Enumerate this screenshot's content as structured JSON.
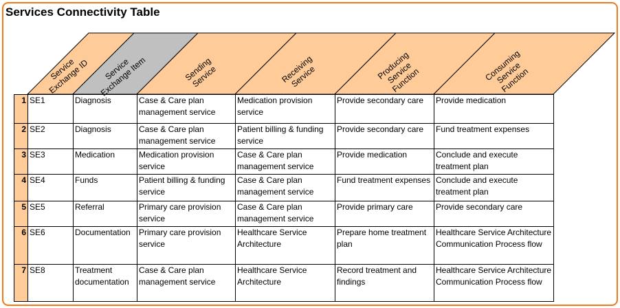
{
  "title": "Services Connectivity Table",
  "colors": {
    "header_fill": "#ffcc99",
    "header_fill_highlight": "#c0c0c0",
    "frame": "#f07a1a"
  },
  "columns": [
    {
      "lines": [
        "Service",
        "Exchange ID"
      ]
    },
    {
      "lines": [
        "Service",
        "Exchange Item"
      ]
    },
    {
      "lines": [
        "Sending",
        "Service"
      ]
    },
    {
      "lines": [
        "Receiving",
        "Service"
      ]
    },
    {
      "lines": [
        "Producing",
        "Service",
        "Function"
      ]
    },
    {
      "lines": [
        "Consuming",
        "Service",
        "Function"
      ]
    }
  ],
  "rows": [
    {
      "num": "1",
      "cells": [
        "SE1",
        "Diagnosis",
        "Case & Care plan management service",
        "Medication provision service",
        "Provide secondary care",
        "Provide medication"
      ]
    },
    {
      "num": "2",
      "cells": [
        "SE2",
        "Diagnosis",
        "Case & Care plan management service",
        "Patient billing & funding service",
        "Provide secondary care",
        "Fund treatment expenses"
      ]
    },
    {
      "num": "3",
      "cells": [
        "SE3",
        "Medication",
        "Medication provision service",
        "Case & Care plan management service",
        "Provide medication",
        "Conclude and execute treatment plan"
      ]
    },
    {
      "num": "4",
      "cells": [
        "SE4",
        "Funds",
        "Patient billing & funding service",
        "Case & Care plan management service",
        "Fund treatment expenses",
        "Conclude and execute treatment plan"
      ]
    },
    {
      "num": "5",
      "cells": [
        "SE5",
        "Referral",
        "Primary care provision service",
        "Case & Care plan management service",
        "Provide primary care",
        "Provide secondary care"
      ]
    },
    {
      "num": "6",
      "cells": [
        "SE6",
        "Documentation",
        "Primary care provision service",
        "Healthcare Service Architecture",
        "Prepare home treatment plan",
        "Healthcare Service Architecture Communication Process flow"
      ]
    },
    {
      "num": "7",
      "cells": [
        "SE8",
        "Treatment documentation",
        "Case & Care plan management service",
        "Healthcare Service Architecture",
        "Record treatment and findings",
        "Healthcare Service Architecture Communication Process flow"
      ]
    }
  ]
}
